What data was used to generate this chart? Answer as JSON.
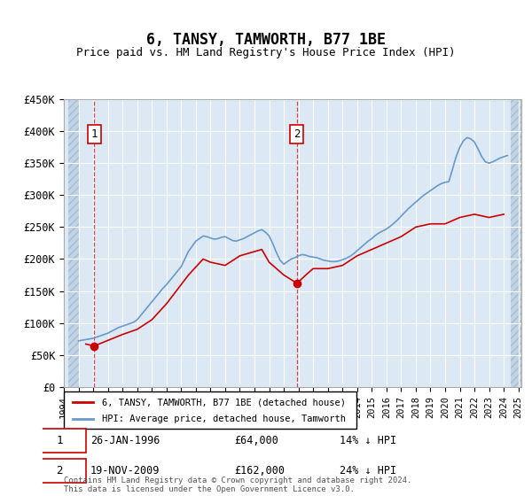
{
  "title": "6, TANSY, TAMWORTH, B77 1BE",
  "subtitle": "Price paid vs. HM Land Registry's House Price Index (HPI)",
  "ylabel": "",
  "xlabel": "",
  "ylim": [
    0,
    450000
  ],
  "yticks": [
    0,
    50000,
    100000,
    150000,
    200000,
    250000,
    300000,
    350000,
    400000,
    450000
  ],
  "ytick_labels": [
    "£0",
    "£50K",
    "£100K",
    "£150K",
    "£200K",
    "£250K",
    "£300K",
    "£350K",
    "£400K",
    "£450K"
  ],
  "bg_color": "#dce9f5",
  "hatch_color": "#c0d4e8",
  "grid_color": "#ffffff",
  "sale1_date": 1996.07,
  "sale1_price": 64000,
  "sale1_label": "1",
  "sale2_date": 2009.9,
  "sale2_price": 162000,
  "sale2_label": "2",
  "red_line_color": "#cc0000",
  "blue_line_color": "#6699cc",
  "marker_color": "#cc0000",
  "dashed_line_color": "#cc0000",
  "legend_label_red": "6, TANSY, TAMWORTH, B77 1BE (detached house)",
  "legend_label_blue": "HPI: Average price, detached house, Tamworth",
  "annotation1": "26-JAN-1996    £64,000    14% ↓ HPI",
  "annotation2": "19-NOV-2009    £162,000    24% ↓ HPI",
  "footer": "Contains HM Land Registry data © Crown copyright and database right 2024.\nThis data is licensed under the Open Government Licence v3.0.",
  "hpi_years": [
    1995.0,
    1995.25,
    1995.5,
    1995.75,
    1996.0,
    1996.25,
    1996.5,
    1996.75,
    1997.0,
    1997.25,
    1997.5,
    1997.75,
    1998.0,
    1998.25,
    1998.5,
    1998.75,
    1999.0,
    1999.25,
    1999.5,
    1999.75,
    2000.0,
    2000.25,
    2000.5,
    2000.75,
    2001.0,
    2001.25,
    2001.5,
    2001.75,
    2002.0,
    2002.25,
    2002.5,
    2002.75,
    2003.0,
    2003.25,
    2003.5,
    2003.75,
    2004.0,
    2004.25,
    2004.5,
    2004.75,
    2005.0,
    2005.25,
    2005.5,
    2005.75,
    2006.0,
    2006.25,
    2006.5,
    2006.75,
    2007.0,
    2007.25,
    2007.5,
    2007.75,
    2008.0,
    2008.25,
    2008.5,
    2008.75,
    2009.0,
    2009.25,
    2009.5,
    2009.75,
    2010.0,
    2010.25,
    2010.5,
    2010.75,
    2011.0,
    2011.25,
    2011.5,
    2011.75,
    2012.0,
    2012.25,
    2012.5,
    2012.75,
    2013.0,
    2013.25,
    2013.5,
    2013.75,
    2014.0,
    2014.25,
    2014.5,
    2014.75,
    2015.0,
    2015.25,
    2015.5,
    2015.75,
    2016.0,
    2016.25,
    2016.5,
    2016.75,
    2017.0,
    2017.25,
    2017.5,
    2017.75,
    2018.0,
    2018.25,
    2018.5,
    2018.75,
    2019.0,
    2019.25,
    2019.5,
    2019.75,
    2020.0,
    2020.25,
    2020.5,
    2020.75,
    2021.0,
    2021.25,
    2021.5,
    2021.75,
    2022.0,
    2022.25,
    2022.5,
    2022.75,
    2023.0,
    2023.25,
    2023.5,
    2023.75,
    2024.0,
    2024.25
  ],
  "hpi_values": [
    72000,
    73000,
    74000,
    75000,
    76000,
    78000,
    80000,
    82000,
    84000,
    87000,
    90000,
    93000,
    95000,
    97000,
    99000,
    101000,
    105000,
    112000,
    119000,
    126000,
    133000,
    140000,
    147000,
    154000,
    160000,
    167000,
    174000,
    181000,
    188000,
    200000,
    212000,
    220000,
    228000,
    232000,
    236000,
    235000,
    233000,
    231000,
    232000,
    234000,
    235000,
    232000,
    229000,
    228000,
    230000,
    232000,
    235000,
    238000,
    241000,
    244000,
    246000,
    242000,
    236000,
    224000,
    210000,
    198000,
    192000,
    196000,
    200000,
    202000,
    205000,
    207000,
    206000,
    204000,
    203000,
    202000,
    200000,
    198000,
    197000,
    196000,
    196000,
    197000,
    199000,
    201000,
    204000,
    208000,
    213000,
    218000,
    223000,
    228000,
    232000,
    237000,
    241000,
    244000,
    247000,
    251000,
    256000,
    261000,
    267000,
    273000,
    279000,
    284000,
    289000,
    294000,
    299000,
    303000,
    307000,
    311000,
    315000,
    318000,
    320000,
    321000,
    340000,
    360000,
    375000,
    385000,
    390000,
    388000,
    383000,
    372000,
    360000,
    352000,
    350000,
    352000,
    355000,
    358000,
    360000,
    362000
  ],
  "price_years": [
    1995.5,
    1996.07,
    1998.0,
    1999.0,
    2000.0,
    2001.0,
    2002.5,
    2003.5,
    2004.0,
    2005.0,
    2006.0,
    2007.5,
    2008.0,
    2009.0,
    2009.9,
    2010.5,
    2011.0,
    2012.0,
    2013.0,
    2014.0,
    2015.0,
    2016.0,
    2017.0,
    2018.0,
    2019.0,
    2020.0,
    2021.0,
    2022.0,
    2023.0,
    2024.0
  ],
  "price_values": [
    67000,
    64000,
    82000,
    90000,
    105000,
    130000,
    175000,
    200000,
    195000,
    190000,
    205000,
    215000,
    195000,
    175000,
    162000,
    175000,
    185000,
    185000,
    190000,
    205000,
    215000,
    225000,
    235000,
    250000,
    255000,
    255000,
    265000,
    270000,
    265000,
    270000
  ]
}
